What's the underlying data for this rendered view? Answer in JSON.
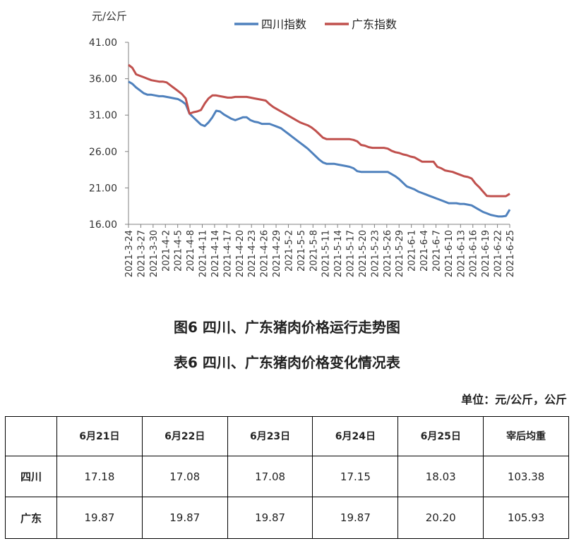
{
  "chart_data": {
    "type": "line",
    "ylabel": "元/公斤",
    "ylim": [
      16,
      41
    ],
    "yticks": [
      "41.00",
      "36.00",
      "31.00",
      "26.00",
      "21.00",
      "16.00"
    ],
    "x_tick_labels": [
      "2021-3-24",
      "2021-3-27",
      "2021-3-30",
      "2021-4-2",
      "2021-4-5",
      "2021-4-8",
      "2021-4-11",
      "2021-4-14",
      "2021-4-17",
      "2021-4-20",
      "2021-4-23",
      "2021-4-26",
      "2021-4-29",
      "2021-5-2",
      "2021-5-5",
      "2021-5-8",
      "2021-5-11",
      "2021-5-14",
      "2021-5-17",
      "2021-5-20",
      "2021-5-23",
      "2021-5-26",
      "2021-5-29",
      "2021-6-1",
      "2021-6-4",
      "2021-6-7",
      "2021-6-10",
      "2021-6-13",
      "2021-6-16",
      "2021-6-19",
      "2021-6-22",
      "2021-6-25"
    ],
    "grid": false,
    "legend": "top",
    "series": [
      {
        "name": "四川指数",
        "color": "#4f81bd",
        "values": [
          35.6,
          35.3,
          34.8,
          34.4,
          34.0,
          33.8,
          33.8,
          33.7,
          33.6,
          33.6,
          33.5,
          33.4,
          33.3,
          33.2,
          32.9,
          32.5,
          31.2,
          30.7,
          30.2,
          29.7,
          29.5,
          30.0,
          30.7,
          31.6,
          31.5,
          31.1,
          30.8,
          30.5,
          30.3,
          30.5,
          30.7,
          30.7,
          30.3,
          30.1,
          30.0,
          29.8,
          29.8,
          29.8,
          29.6,
          29.4,
          29.2,
          28.8,
          28.4,
          28.0,
          27.6,
          27.2,
          26.8,
          26.4,
          25.9,
          25.4,
          24.9,
          24.5,
          24.3,
          24.3,
          24.3,
          24.2,
          24.1,
          24.0,
          23.9,
          23.7,
          23.3,
          23.2,
          23.2,
          23.2,
          23.2,
          23.2,
          23.2,
          23.2,
          23.2,
          22.9,
          22.6,
          22.2,
          21.7,
          21.2,
          21.0,
          20.8,
          20.5,
          20.3,
          20.1,
          19.9,
          19.7,
          19.5,
          19.3,
          19.1,
          18.9,
          18.9,
          18.9,
          18.8,
          18.8,
          18.7,
          18.6,
          18.3,
          18.0,
          17.7,
          17.5,
          17.3,
          17.18,
          17.08,
          17.08,
          17.15,
          18.03
        ]
      },
      {
        "name": "广东指数",
        "color": "#c0504d",
        "values": [
          37.9,
          37.5,
          36.6,
          36.4,
          36.2,
          36.0,
          35.8,
          35.7,
          35.6,
          35.6,
          35.5,
          35.1,
          34.7,
          34.3,
          33.9,
          33.3,
          31.2,
          31.4,
          31.5,
          31.7,
          32.6,
          33.3,
          33.7,
          33.7,
          33.6,
          33.5,
          33.4,
          33.4,
          33.5,
          33.5,
          33.5,
          33.5,
          33.4,
          33.3,
          33.2,
          33.1,
          33.0,
          32.5,
          32.1,
          31.8,
          31.5,
          31.2,
          30.9,
          30.6,
          30.3,
          30.0,
          29.8,
          29.6,
          29.3,
          28.9,
          28.4,
          27.9,
          27.7,
          27.7,
          27.7,
          27.7,
          27.7,
          27.7,
          27.7,
          27.6,
          27.4,
          26.9,
          26.8,
          26.6,
          26.5,
          26.5,
          26.5,
          26.5,
          26.4,
          26.1,
          25.9,
          25.8,
          25.6,
          25.5,
          25.3,
          25.2,
          24.9,
          24.6,
          24.6,
          24.6,
          24.6,
          23.9,
          23.7,
          23.4,
          23.3,
          23.2,
          23.0,
          22.8,
          22.6,
          22.5,
          22.3,
          21.6,
          21.1,
          20.5,
          19.9,
          19.87,
          19.87,
          19.87,
          19.87,
          19.87,
          20.2
        ]
      }
    ]
  },
  "captions": {
    "figure": "图6 四川、广东猪肉价格运行走势图",
    "table": "表6 四川、广东猪肉价格变化情况表",
    "unit": "单位：元/公斤，公斤"
  },
  "table": {
    "headers": [
      "",
      "6月21日",
      "6月22日",
      "6月23日",
      "6月24日",
      "6月25日",
      "宰后均重"
    ],
    "rows": [
      {
        "label": "四川",
        "cells": [
          "17.18",
          "17.08",
          "17.08",
          "17.15",
          "18.03",
          "103.38"
        ]
      },
      {
        "label": "广东",
        "cells": [
          "19.87",
          "19.87",
          "19.87",
          "19.87",
          "20.20",
          "105.93"
        ]
      }
    ]
  }
}
